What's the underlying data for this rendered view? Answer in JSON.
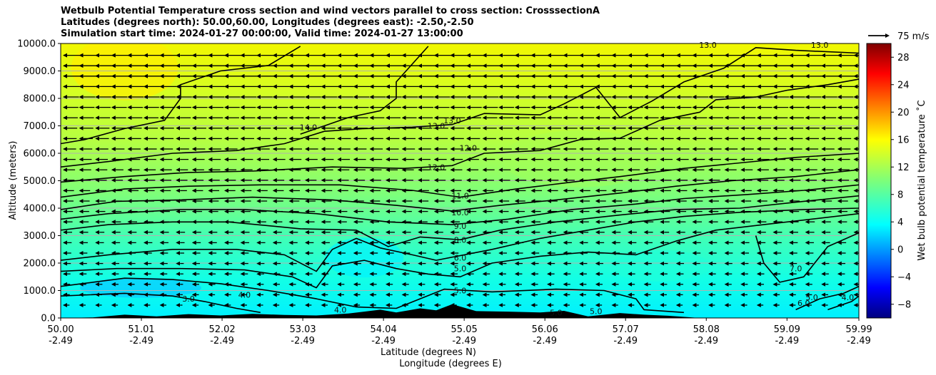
{
  "chart_data": {
    "type": "heatmap",
    "title_lines": [
      "Wetbulb Potential Temperature cross section and wind vectors parallel to cross section: CrosssectionA",
      "Latitudes (degrees north): 50.00,60.00, Longitudes (degrees east): -2.50,-2.50",
      "Simulation start time: 2024-01-27 00:00:00, Valid time: 2024-01-27 13:00:00"
    ],
    "ylabel": "Altitude (meters)",
    "xlabel_lines": [
      "Latitude (degrees N)",
      "Longitude (degrees E)"
    ],
    "x_ticks": [
      {
        "lat": "50.00",
        "lon": "-2.49"
      },
      {
        "lat": "51.01",
        "lon": "-2.49"
      },
      {
        "lat": "52.02",
        "lon": "-2.49"
      },
      {
        "lat": "53.03",
        "lon": "-2.49"
      },
      {
        "lat": "54.04",
        "lon": "-2.49"
      },
      {
        "lat": "55.05",
        "lon": "-2.49"
      },
      {
        "lat": "56.06",
        "lon": "-2.49"
      },
      {
        "lat": "57.07",
        "lon": "-2.49"
      },
      {
        "lat": "58.08",
        "lon": "-2.49"
      },
      {
        "lat": "59.09",
        "lon": "-2.49"
      },
      {
        "lat": "59.99",
        "lon": "-2.49"
      }
    ],
    "xlim": [
      50.0,
      59.99
    ],
    "y_ticks": [
      "0.0",
      "1000.0",
      "2000.0",
      "3000.0",
      "4000.0",
      "5000.0",
      "6000.0",
      "7000.0",
      "8000.0",
      "9000.0",
      "10000.0"
    ],
    "ylim": [
      0,
      10000
    ],
    "grid": true,
    "colorbar": {
      "label": "Wet bulb potential temperature ˚C",
      "ticks": [
        "−8",
        "−4",
        "0",
        "4",
        "8",
        "12",
        "16",
        "20",
        "24",
        "28"
      ],
      "range": [
        -10,
        30
      ],
      "colormap": "jet"
    },
    "quiver_key": {
      "label": "75 m/s"
    },
    "contour_labels": [
      {
        "text": "14.0",
        "lat": 53.1,
        "alt": 6950
      },
      {
        "text": "13.0",
        "lat": 54.7,
        "alt": 7000
      },
      {
        "text": "13.0",
        "lat": 54.9,
        "alt": 7200
      },
      {
        "text": "12.0",
        "lat": 54.7,
        "alt": 5500
      },
      {
        "text": "12.0",
        "lat": 55.1,
        "alt": 6200
      },
      {
        "text": "13.0",
        "lat": 58.1,
        "alt": 9950
      },
      {
        "text": "13.0",
        "lat": 59.5,
        "alt": 9950
      },
      {
        "text": "11.0",
        "lat": 55.0,
        "alt": 4450
      },
      {
        "text": "10.0",
        "lat": 55.0,
        "alt": 3850
      },
      {
        "text": "9.0",
        "lat": 55.0,
        "alt": 3350
      },
      {
        "text": "8.0",
        "lat": 55.0,
        "alt": 2850
      },
      {
        "text": "6.0",
        "lat": 55.0,
        "alt": 2200
      },
      {
        "text": "5.0",
        "lat": 55.0,
        "alt": 1800
      },
      {
        "text": "5.0",
        "lat": 55.0,
        "alt": 1000
      },
      {
        "text": "3.0",
        "lat": 51.6,
        "alt": 700
      },
      {
        "text": "4.0",
        "lat": 52.3,
        "alt": 850
      },
      {
        "text": "4.0",
        "lat": 53.5,
        "alt": 300
      },
      {
        "text": "5.0",
        "lat": 56.2,
        "alt": 200
      },
      {
        "text": "5.0",
        "lat": 56.7,
        "alt": 250
      },
      {
        "text": "7.0",
        "lat": 59.2,
        "alt": 1800
      },
      {
        "text": "6.0",
        "lat": 59.3,
        "alt": 550
      },
      {
        "text": "5.0",
        "lat": 59.4,
        "alt": 750
      },
      {
        "text": "4.0",
        "lat": 59.85,
        "alt": 750
      }
    ],
    "contour_lines": [
      {
        "level": 14,
        "points": [
          [
            50.0,
            6350
          ],
          [
            50.3,
            6500
          ],
          [
            50.8,
            6900
          ],
          [
            51.3,
            7200
          ],
          [
            51.5,
            8000
          ],
          [
            51.5,
            8500
          ],
          [
            52.0,
            9000
          ],
          [
            52.6,
            9200
          ],
          [
            53.0,
            9900
          ]
        ]
      },
      {
        "level": 14,
        "points": [
          [
            53.0,
            6700
          ],
          [
            53.6,
            7300
          ],
          [
            54.0,
            7550
          ],
          [
            54.2,
            8000
          ],
          [
            54.2,
            8600
          ],
          [
            54.6,
            9900
          ]
        ]
      },
      {
        "level": 13,
        "points": [
          [
            50.0,
            5500
          ],
          [
            50.6,
            5700
          ],
          [
            51.4,
            6000
          ],
          [
            52.2,
            6100
          ],
          [
            52.8,
            6350
          ],
          [
            53.3,
            6800
          ],
          [
            53.8,
            6900
          ],
          [
            54.4,
            6950
          ],
          [
            54.9,
            7050
          ],
          [
            55.3,
            7450
          ],
          [
            56.0,
            7400
          ],
          [
            56.3,
            7800
          ],
          [
            56.7,
            8400
          ],
          [
            57.0,
            7300
          ],
          [
            57.4,
            7900
          ],
          [
            57.8,
            8600
          ],
          [
            58.3,
            9100
          ],
          [
            58.7,
            9850
          ],
          [
            59.2,
            9750
          ],
          [
            59.99,
            9650
          ]
        ]
      },
      {
        "level": 12,
        "points": [
          [
            50.0,
            4950
          ],
          [
            50.8,
            5150
          ],
          [
            51.6,
            5300
          ],
          [
            52.4,
            5350
          ],
          [
            53.4,
            5500
          ],
          [
            54.3,
            5450
          ],
          [
            54.9,
            5550
          ],
          [
            55.3,
            6000
          ],
          [
            56.0,
            6100
          ],
          [
            56.5,
            6500
          ],
          [
            57.0,
            6550
          ],
          [
            57.5,
            7200
          ],
          [
            58.0,
            7500
          ],
          [
            58.2,
            7950
          ],
          [
            58.7,
            8050
          ],
          [
            59.1,
            8300
          ],
          [
            59.6,
            8500
          ],
          [
            59.99,
            8700
          ]
        ]
      },
      {
        "level": 11,
        "points": [
          [
            50.0,
            4400
          ],
          [
            50.8,
            4700
          ],
          [
            51.6,
            4800
          ],
          [
            52.5,
            4850
          ],
          [
            53.5,
            4850
          ],
          [
            54.4,
            4650
          ],
          [
            55.0,
            4400
          ],
          [
            55.7,
            4700
          ],
          [
            56.4,
            4950
          ],
          [
            57.0,
            5150
          ],
          [
            57.8,
            5450
          ],
          [
            58.5,
            5650
          ],
          [
            59.2,
            5850
          ],
          [
            59.99,
            6000
          ]
        ]
      },
      {
        "level": 10,
        "points": [
          [
            50.0,
            3950
          ],
          [
            50.7,
            4250
          ],
          [
            51.5,
            4300
          ],
          [
            52.4,
            4400
          ],
          [
            53.4,
            4300
          ],
          [
            54.2,
            4100
          ],
          [
            54.9,
            3900
          ],
          [
            55.5,
            4100
          ],
          [
            56.2,
            4300
          ],
          [
            57.0,
            4550
          ],
          [
            57.7,
            4800
          ],
          [
            58.4,
            5000
          ],
          [
            59.2,
            5150
          ],
          [
            59.99,
            5400
          ]
        ]
      },
      {
        "level": 9,
        "points": [
          [
            50.0,
            3600
          ],
          [
            50.6,
            3800
          ],
          [
            51.5,
            3950
          ],
          [
            52.3,
            3950
          ],
          [
            53.2,
            3800
          ],
          [
            54.1,
            3500
          ],
          [
            54.9,
            3400
          ],
          [
            55.6,
            3600
          ],
          [
            56.4,
            3950
          ],
          [
            57.2,
            4150
          ],
          [
            57.8,
            4350
          ],
          [
            58.6,
            4500
          ],
          [
            59.3,
            4650
          ],
          [
            59.99,
            4850
          ]
        ]
      },
      {
        "level": 8,
        "points": [
          [
            50.0,
            3200
          ],
          [
            50.6,
            3400
          ],
          [
            51.4,
            3500
          ],
          [
            52.1,
            3500
          ],
          [
            53.0,
            3250
          ],
          [
            53.7,
            3200
          ],
          [
            54.1,
            2600
          ],
          [
            54.5,
            2950
          ],
          [
            55.0,
            2850
          ],
          [
            55.5,
            3200
          ],
          [
            56.2,
            3500
          ],
          [
            57.0,
            3750
          ],
          [
            57.7,
            3950
          ],
          [
            58.5,
            4000
          ],
          [
            59.3,
            4250
          ],
          [
            59.99,
            4450
          ]
        ]
      },
      {
        "level": 6,
        "points": [
          [
            50.0,
            2100
          ],
          [
            50.6,
            2300
          ],
          [
            51.4,
            2500
          ],
          [
            52.2,
            2500
          ],
          [
            52.8,
            2300
          ],
          [
            53.2,
            1700
          ],
          [
            53.4,
            2500
          ],
          [
            53.7,
            2900
          ],
          [
            54.0,
            2550
          ],
          [
            54.4,
            2300
          ],
          [
            54.7,
            2100
          ],
          [
            55.4,
            2500
          ],
          [
            56.0,
            2900
          ],
          [
            56.6,
            3200
          ],
          [
            57.2,
            3500
          ],
          [
            57.8,
            3700
          ],
          [
            58.5,
            3850
          ],
          [
            59.3,
            3950
          ],
          [
            59.99,
            4000
          ]
        ]
      },
      {
        "level": 5,
        "points": [
          [
            50.0,
            1700
          ],
          [
            50.7,
            1800
          ],
          [
            51.5,
            1800
          ],
          [
            52.3,
            1750
          ],
          [
            52.9,
            1500
          ],
          [
            53.2,
            1100
          ],
          [
            53.4,
            1900
          ],
          [
            53.8,
            2100
          ],
          [
            54.2,
            1800
          ],
          [
            54.6,
            1600
          ],
          [
            55.0,
            1500
          ],
          [
            55.4,
            2000
          ],
          [
            56.0,
            2250
          ],
          [
            56.6,
            2400
          ],
          [
            57.2,
            2300
          ],
          [
            57.7,
            2800
          ],
          [
            58.2,
            3200
          ],
          [
            58.8,
            3400
          ],
          [
            59.99,
            3800
          ]
        ]
      },
      {
        "level": 7,
        "points": [
          [
            58.7,
            3000
          ],
          [
            58.8,
            2000
          ],
          [
            59.0,
            1300
          ],
          [
            59.3,
            1500
          ],
          [
            59.6,
            2600
          ],
          [
            59.99,
            3100
          ]
        ]
      },
      {
        "level": 4,
        "points": [
          [
            50.0,
            1150
          ],
          [
            50.8,
            1450
          ],
          [
            51.4,
            1400
          ],
          [
            52.0,
            1250
          ],
          [
            52.6,
            1000
          ],
          [
            53.2,
            700
          ],
          [
            53.7,
            400
          ],
          [
            54.2,
            350
          ],
          [
            54.8,
            1050
          ],
          [
            55.4,
            950
          ],
          [
            56.2,
            1050
          ],
          [
            56.8,
            1000
          ],
          [
            57.2,
            700
          ],
          [
            57.3,
            300
          ],
          [
            57.8,
            200
          ]
        ]
      },
      {
        "level": 3,
        "points": [
          [
            50.0,
            800
          ],
          [
            50.8,
            900
          ],
          [
            51.4,
            800
          ],
          [
            51.8,
            600
          ],
          [
            52.2,
            350
          ],
          [
            52.5,
            200
          ]
        ]
      },
      {
        "level": 6,
        "points": [
          [
            59.2,
            300
          ],
          [
            59.5,
            700
          ],
          [
            59.8,
            900
          ],
          [
            59.99,
            1150
          ]
        ]
      },
      {
        "level": 4,
        "points": [
          [
            59.6,
            300
          ],
          [
            59.9,
            600
          ],
          [
            59.99,
            800
          ]
        ]
      }
    ]
  }
}
